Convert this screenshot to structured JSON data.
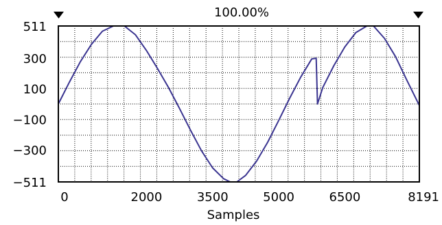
{
  "header": {
    "zoom_label": "100.00%"
  },
  "colors": {
    "background": "#ffffff",
    "grid": "#000000",
    "frame": "#000000",
    "trace": "#3a3490",
    "text": "#000000"
  },
  "icons": {
    "left_marker": "triangle-down-icon",
    "right_marker": "triangle-down-icon"
  },
  "chart_data": {
    "type": "line",
    "title": "",
    "xlabel": "Samples",
    "ylabel": "",
    "xlim": [
      0,
      8191
    ],
    "ylim": [
      -511,
      511
    ],
    "x_ticks": [
      0,
      2000,
      3500,
      5000,
      6500,
      8191
    ],
    "y_ticks": [
      511,
      300,
      100,
      -100,
      -300,
      -511
    ],
    "grid": true,
    "series": [
      {
        "values": [
          [
            0,
            0
          ],
          [
            250,
            143
          ],
          [
            500,
            277
          ],
          [
            750,
            391
          ],
          [
            1000,
            477
          ],
          [
            1250,
            511
          ],
          [
            1500,
            511
          ],
          [
            1750,
            453
          ],
          [
            2000,
            350
          ],
          [
            2250,
            232
          ],
          [
            2500,
            108
          ],
          [
            2750,
            -30
          ],
          [
            3000,
            -173
          ],
          [
            3250,
            -308
          ],
          [
            3500,
            -419
          ],
          [
            3750,
            -490
          ],
          [
            3900,
            -511
          ],
          [
            4050,
            -511
          ],
          [
            4250,
            -468
          ],
          [
            4500,
            -374
          ],
          [
            4750,
            -251
          ],
          [
            5000,
            -108
          ],
          [
            5250,
            38
          ],
          [
            5500,
            176
          ],
          [
            5750,
            295
          ],
          [
            5850,
            300
          ],
          [
            5880,
            0
          ],
          [
            6000,
            108
          ],
          [
            6250,
            251
          ],
          [
            6500,
            374
          ],
          [
            6750,
            468
          ],
          [
            7000,
            511
          ],
          [
            7150,
            511
          ],
          [
            7400,
            430
          ],
          [
            7650,
            310
          ],
          [
            7900,
            160
          ],
          [
            8191,
            -10
          ]
        ]
      }
    ]
  }
}
